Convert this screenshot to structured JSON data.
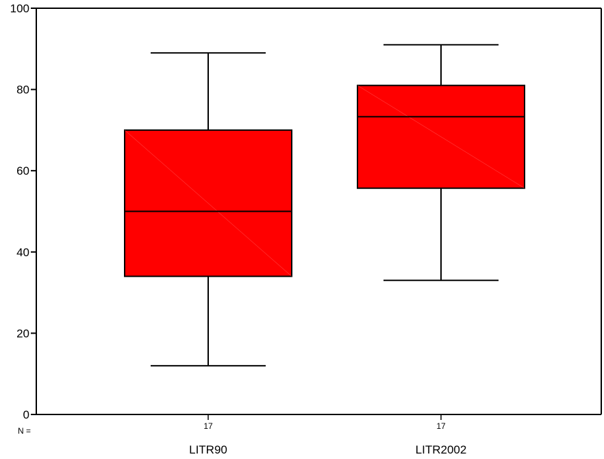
{
  "chart_data": {
    "type": "boxplot",
    "categories": [
      "LITR90",
      "LITR2002"
    ],
    "boxes": [
      {
        "category": "LITR90",
        "min": 12,
        "q1": 34,
        "median": 50,
        "q3": 70,
        "max": 89,
        "n": "17"
      },
      {
        "category": "LITR2002",
        "min": 33,
        "q1": 55.7,
        "median": 73.3,
        "q3": 81,
        "max": 91,
        "n": "17"
      }
    ],
    "ylim": [
      0,
      100
    ],
    "yticks": [
      "0",
      "20",
      "40",
      "60",
      "80",
      "100"
    ],
    "n_prefix": "N =",
    "box_color": "#ff0000",
    "grid": false,
    "legend": "none"
  }
}
